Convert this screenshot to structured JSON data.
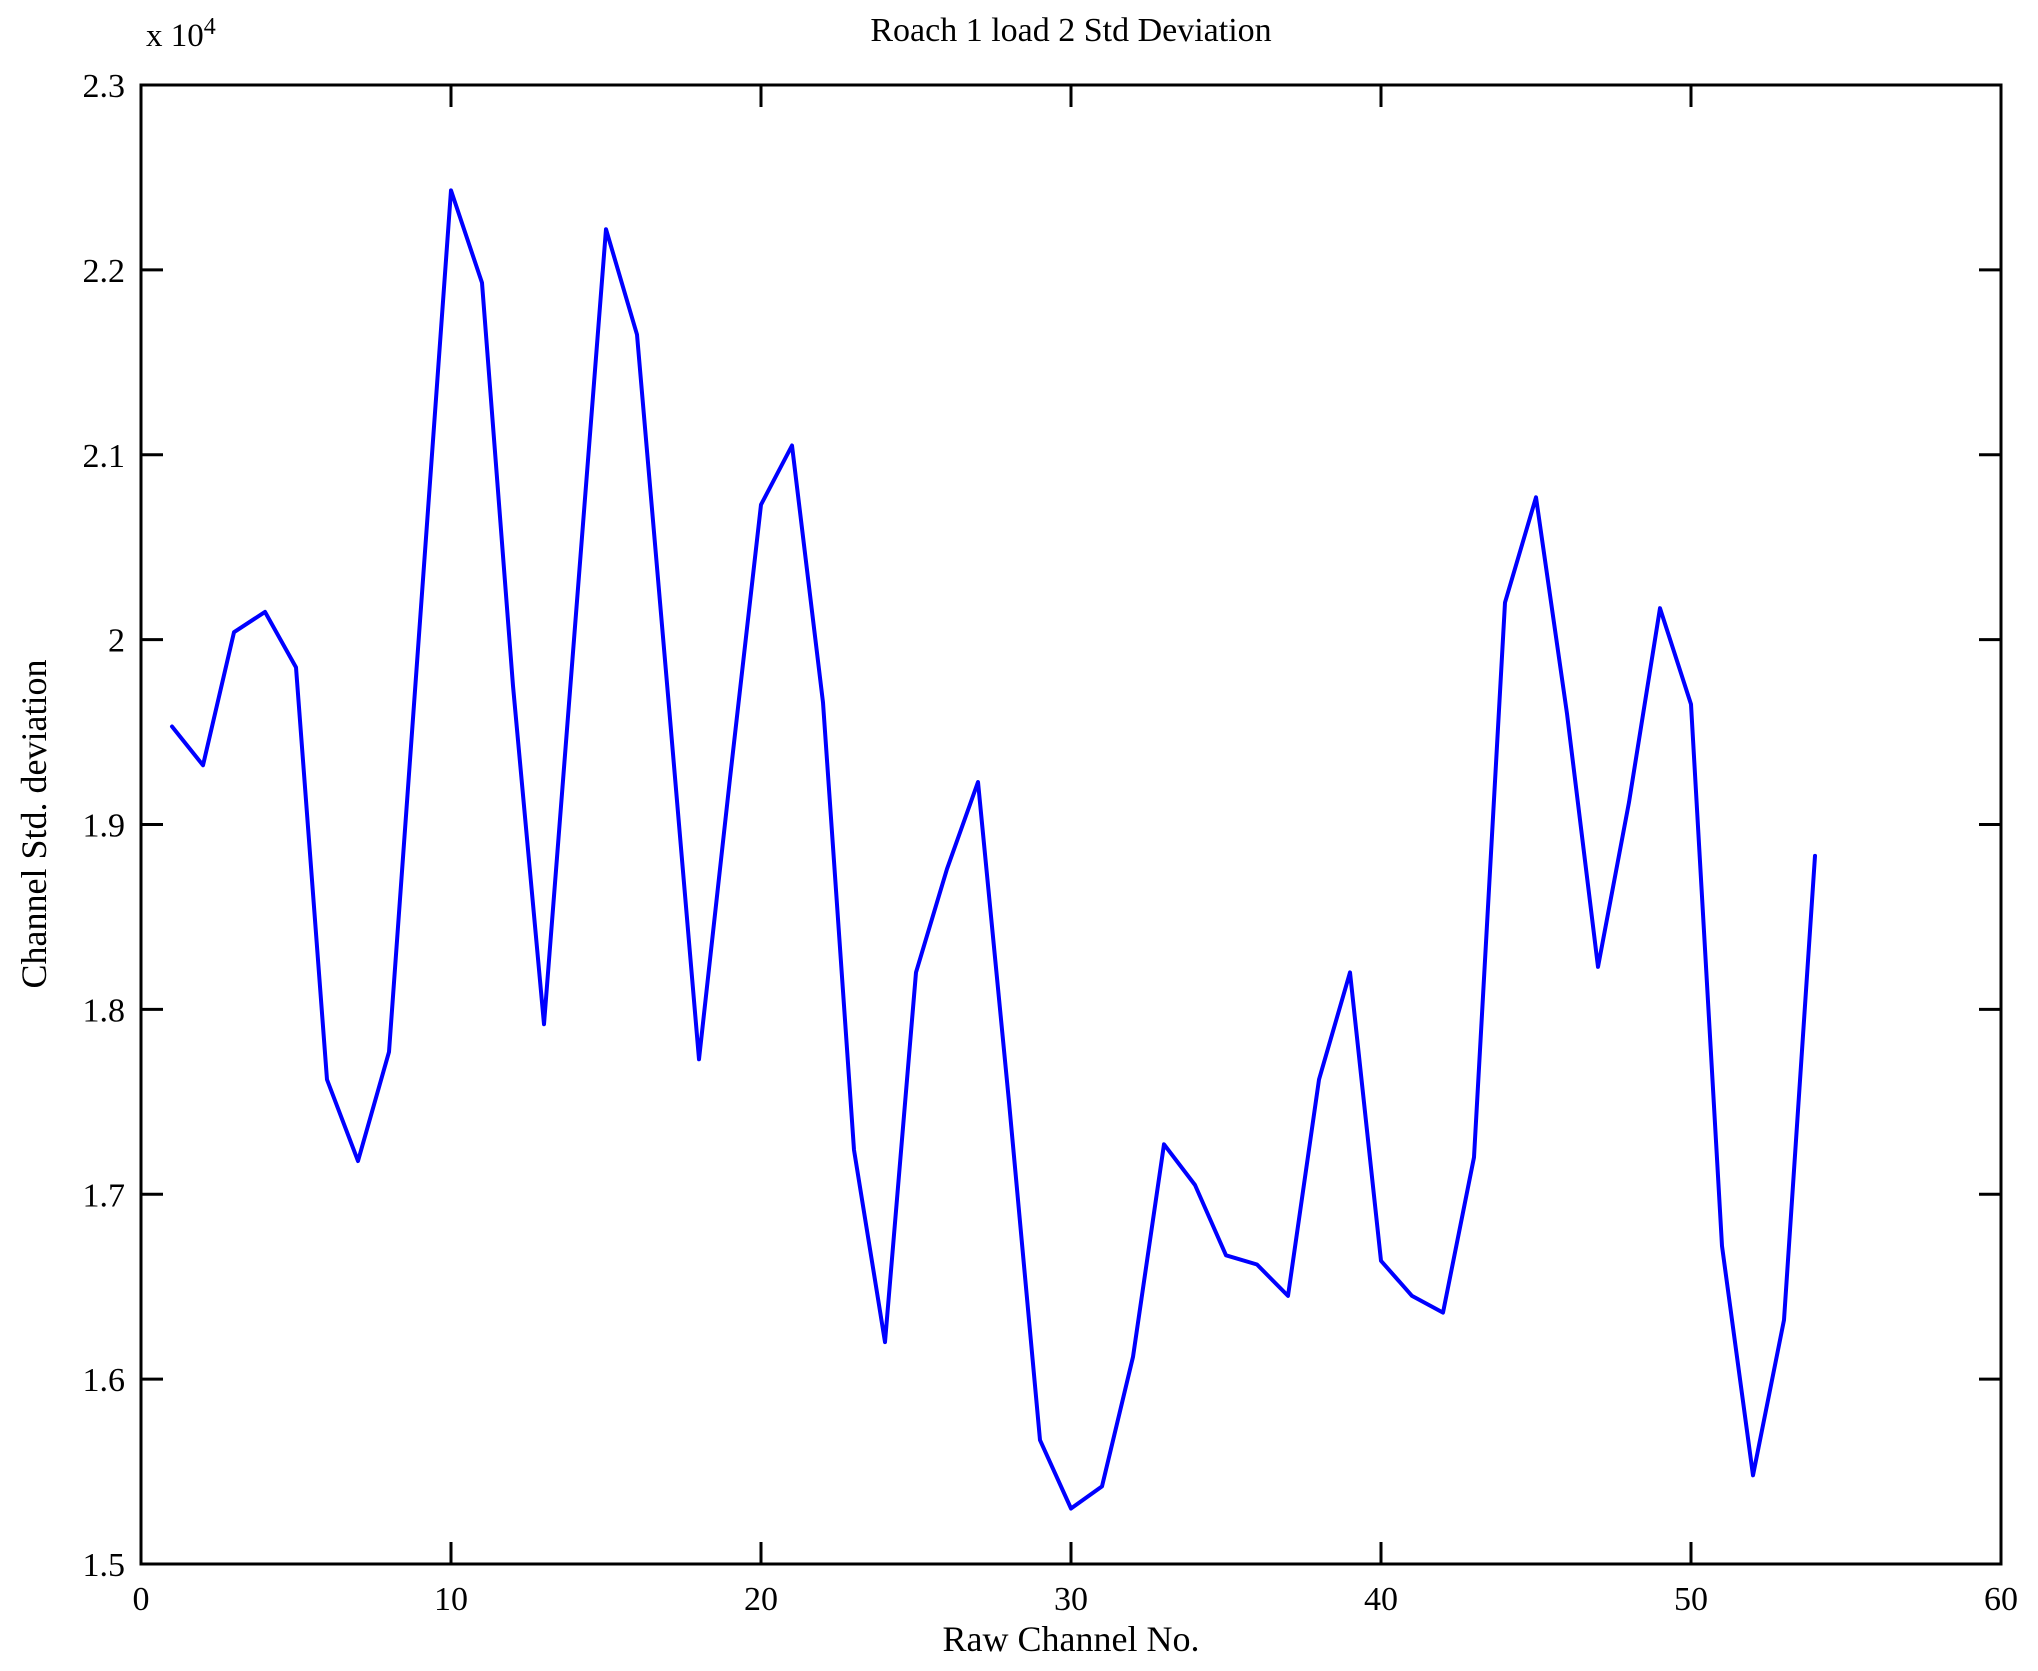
{
  "figure": {
    "title": "Roach 1 load 2 Std Deviation",
    "xlabel": "Raw Channel No.",
    "ylabel": "Channel Std. deviation",
    "exponent_label": "x 10",
    "exponent_power": "4"
  },
  "chart_data": {
    "type": "line",
    "title": "Roach 1 load 2 Std Deviation",
    "xlabel": "Raw Channel No.",
    "ylabel": "Channel Std. deviation",
    "y_unit_scale": 10000,
    "xlim": [
      0,
      60
    ],
    "ylim": [
      1.5,
      2.3
    ],
    "x_ticks": [
      0,
      10,
      20,
      30,
      40,
      50,
      60
    ],
    "y_ticks": [
      1.5,
      1.6,
      1.7,
      1.8,
      1.9,
      2,
      2.1,
      2.2,
      2.3
    ],
    "y_tick_labels": [
      "1.5",
      "1.6",
      "1.7",
      "1.8",
      "1.9",
      "2",
      "2.1",
      "2.2",
      "2.3"
    ],
    "grid": false,
    "legend": null,
    "line_color": "#0000FF",
    "x": [
      1,
      2,
      3,
      4,
      5,
      6,
      7,
      8,
      9,
      10,
      11,
      12,
      13,
      14,
      15,
      16,
      17,
      18,
      19,
      20,
      21,
      22,
      23,
      24,
      25,
      26,
      27,
      28,
      29,
      30,
      31,
      32,
      33,
      34,
      35,
      36,
      37,
      38,
      39,
      40,
      41,
      42,
      43,
      44,
      45,
      46,
      47,
      48,
      49,
      50,
      51,
      52,
      53,
      54
    ],
    "values": [
      1.953,
      1.932,
      2.004,
      2.015,
      1.985,
      1.762,
      1.718,
      1.777,
      2.01,
      2.243,
      2.193,
      1.975,
      1.792,
      2.007,
      2.222,
      2.165,
      1.97,
      1.773,
      1.925,
      2.073,
      2.105,
      1.966,
      1.724,
      1.62,
      1.82,
      1.876,
      1.923,
      1.75,
      1.567,
      1.53,
      1.542,
      1.612,
      1.727,
      1.705,
      1.667,
      1.662,
      1.645,
      1.762,
      1.82,
      1.664,
      1.645,
      1.636,
      1.72,
      2.02,
      2.077,
      1.96,
      1.823,
      1.912,
      2.017,
      1.965,
      1.672,
      1.548,
      1.632,
      1.883
    ]
  }
}
